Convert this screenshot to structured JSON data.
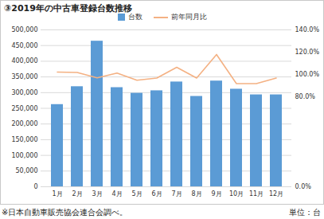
{
  "chart_data": {
    "type": "bar",
    "title": "③2019年の中古車登録台数推移",
    "categories": [
      "1月",
      "2月",
      "3月",
      "4月",
      "5月",
      "6月",
      "7月",
      "8月",
      "9月",
      "10月",
      "11月",
      "12月"
    ],
    "series": [
      {
        "name": "台数",
        "type": "bar",
        "color": "#5b9bd5",
        "values": [
          262000,
          319000,
          464000,
          316000,
          298000,
          306000,
          334000,
          288000,
          337000,
          311000,
          293000,
          293000
        ]
      },
      {
        "name": "前年同月比",
        "type": "line",
        "color": "#f4b183",
        "axis": "y2",
        "values": [
          102.3,
          102.0,
          97.2,
          101.5,
          95.0,
          97.0,
          106.6,
          97.0,
          118.0,
          92.0,
          92.0,
          97.0
        ]
      }
    ],
    "ylim": [
      0,
      500000
    ],
    "yticks": [
      0,
      {
        "value": 50000,
        "label": "50,000"
      },
      {
        "value": 100000,
        "label": "100,000"
      },
      {
        "value": 150000,
        "label": "150,000"
      },
      {
        "value": 200000,
        "label": "200,000"
      },
      {
        "value": 250000,
        "label": "250,000"
      },
      {
        "value": 300000,
        "label": "300,000"
      },
      {
        "value": 350000,
        "label": "350,000"
      },
      {
        "value": 400000,
        "label": "400,000"
      },
      {
        "value": 450000,
        "label": "450,000"
      },
      {
        "value": 500000,
        "label": "500,000"
      }
    ],
    "y2lim": [
      0,
      140
    ],
    "y2ticks": [
      {
        "value": 0,
        "label": "0.0%"
      },
      {
        "value": 80,
        "label": "80.0%"
      },
      {
        "value": 100,
        "label": "100.0%"
      },
      {
        "value": 120,
        "label": "120.0%"
      },
      {
        "value": 140,
        "label": "140.0%"
      }
    ],
    "grid": true,
    "legend": "top",
    "source": "※日本自動車販売協会連合会調べ。",
    "unit": "単位：台"
  }
}
